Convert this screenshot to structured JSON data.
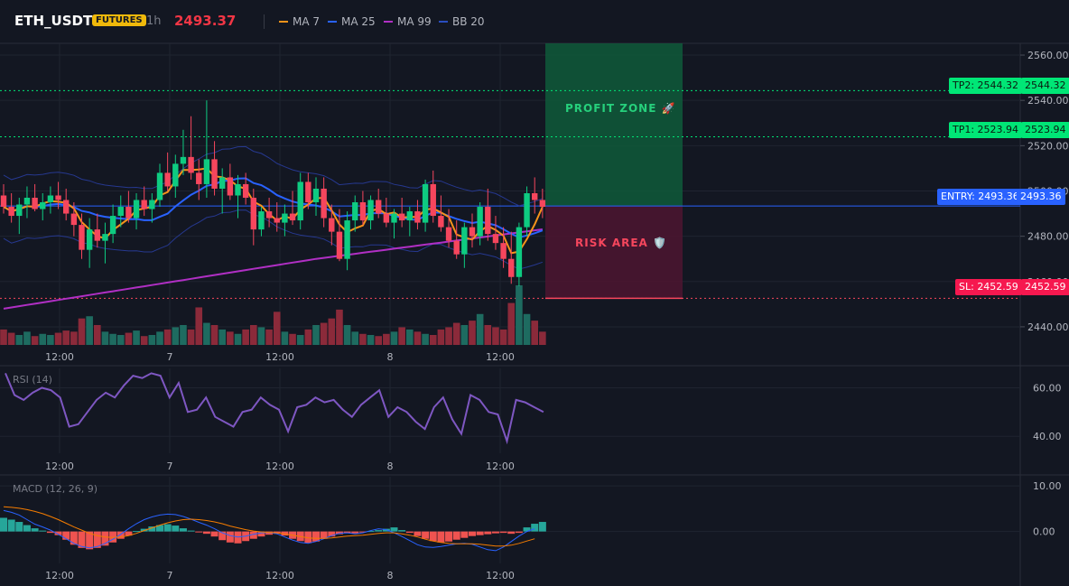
{
  "header": {
    "symbol": "ETH_USDT",
    "badge": "FUTURES",
    "timeframe": "1h",
    "price": "2493.37",
    "legend": [
      {
        "label": "MA 7",
        "color": "#f7931a"
      },
      {
        "label": "MA 25",
        "color": "#2962ff"
      },
      {
        "label": "MA 99",
        "color": "#b02fc4"
      },
      {
        "label": "BB 20",
        "color": "#2a3a8c"
      }
    ]
  },
  "trade": {
    "tp2_label": "TP2: 2544.32",
    "tp2_price": "2544.32",
    "tp1_label": "TP1: 2523.94",
    "tp1_price": "2523.94",
    "entry_label": "ENTRY: 2493.36",
    "entry_price": "2493.36",
    "sl_label": "SL: 2452.59",
    "sl_price": "2452.59",
    "profit_zone": "PROFIT ZONE 🚀",
    "risk_area": "RISK AREA 🛡️",
    "tp2": 2544.32,
    "tp1": 2523.94,
    "entry": 2493.36,
    "sl": 2452.59
  },
  "indicators": {
    "rsi_label": "RSI (14)",
    "macd_label": "MACD (12, 26, 9)"
  },
  "colors": {
    "up": "#26a69a",
    "down": "#ef5350",
    "candle_up": "#0ecb81",
    "candle_down": "#f6465d"
  },
  "chart_data": [
    {
      "type": "candlestick",
      "y_ticks": [
        "2560.00",
        "2540.00",
        "2520.00",
        "2500.00",
        "2480.00",
        "2460.00",
        "2440.00"
      ],
      "ylim": [
        2432,
        2562
      ],
      "x_tick_labels": [
        "12:00",
        "7",
        "12:00",
        "8",
        "12:00"
      ],
      "ohlc": [
        [
          2498,
          2503,
          2490,
          2493
        ],
        [
          2493,
          2499,
          2486,
          2489
        ],
        [
          2489,
          2497,
          2481,
          2494
        ],
        [
          2494,
          2502,
          2488,
          2497
        ],
        [
          2497,
          2503,
          2491,
          2492
        ],
        [
          2492,
          2499,
          2487,
          2495
        ],
        [
          2495,
          2502,
          2490,
          2498
        ],
        [
          2498,
          2504,
          2492,
          2496
        ],
        [
          2496,
          2501,
          2487,
          2490
        ],
        [
          2490,
          2495,
          2480,
          2485
        ],
        [
          2485,
          2490,
          2470,
          2474
        ],
        [
          2474,
          2488,
          2466,
          2483
        ],
        [
          2483,
          2490,
          2475,
          2478
        ],
        [
          2478,
          2486,
          2468,
          2481
        ],
        [
          2481,
          2494,
          2477,
          2489
        ],
        [
          2489,
          2498,
          2484,
          2493
        ],
        [
          2493,
          2500,
          2486,
          2488
        ],
        [
          2488,
          2499,
          2483,
          2496
        ],
        [
          2496,
          2502,
          2489,
          2492
        ],
        [
          2492,
          2499,
          2486,
          2496
        ],
        [
          2496,
          2512,
          2493,
          2508
        ],
        [
          2508,
          2517,
          2500,
          2502
        ],
        [
          2502,
          2516,
          2497,
          2512
        ],
        [
          2512,
          2527,
          2507,
          2515
        ],
        [
          2515,
          2533,
          2505,
          2508
        ],
        [
          2508,
          2514,
          2496,
          2503
        ],
        [
          2503,
          2540,
          2497,
          2514
        ],
        [
          2514,
          2522,
          2498,
          2501
        ],
        [
          2501,
          2510,
          2490,
          2506
        ],
        [
          2506,
          2512,
          2496,
          2498
        ],
        [
          2498,
          2507,
          2488,
          2503
        ],
        [
          2503,
          2508,
          2494,
          2497
        ],
        [
          2497,
          2501,
          2476,
          2483
        ],
        [
          2483,
          2493,
          2480,
          2491
        ],
        [
          2491,
          2497,
          2484,
          2488
        ],
        [
          2488,
          2495,
          2482,
          2486
        ],
        [
          2486,
          2494,
          2480,
          2490
        ],
        [
          2490,
          2500,
          2485,
          2487
        ],
        [
          2487,
          2508,
          2483,
          2504
        ],
        [
          2504,
          2508,
          2492,
          2495
        ],
        [
          2495,
          2506,
          2489,
          2501
        ],
        [
          2501,
          2506,
          2484,
          2488
        ],
        [
          2488,
          2494,
          2476,
          2482
        ],
        [
          2482,
          2492,
          2469,
          2470
        ],
        [
          2470,
          2491,
          2465,
          2487
        ],
        [
          2487,
          2498,
          2482,
          2495
        ],
        [
          2495,
          2500,
          2485,
          2487
        ],
        [
          2487,
          2498,
          2483,
          2496
        ],
        [
          2496,
          2501,
          2488,
          2490
        ],
        [
          2490,
          2497,
          2484,
          2486
        ],
        [
          2486,
          2492,
          2479,
          2490
        ],
        [
          2490,
          2497,
          2484,
          2487
        ],
        [
          2487,
          2493,
          2480,
          2491
        ],
        [
          2491,
          2496,
          2483,
          2486
        ],
        [
          2486,
          2505,
          2482,
          2503
        ],
        [
          2503,
          2509,
          2486,
          2489
        ],
        [
          2489,
          2498,
          2482,
          2484
        ],
        [
          2484,
          2492,
          2475,
          2478
        ],
        [
          2478,
          2487,
          2470,
          2472
        ],
        [
          2472,
          2486,
          2466,
          2484
        ],
        [
          2484,
          2490,
          2475,
          2480
        ],
        [
          2480,
          2495,
          2476,
          2493
        ],
        [
          2493,
          2501,
          2478,
          2481
        ],
        [
          2481,
          2489,
          2474,
          2477
        ],
        [
          2477,
          2484,
          2466,
          2470
        ],
        [
          2470,
          2482,
          2459,
          2462
        ],
        [
          2462,
          2486,
          2458,
          2484
        ],
        [
          2484,
          2502,
          2480,
          2499
        ],
        [
          2499,
          2506,
          2490,
          2496
        ],
        [
          2496,
          2501,
          2488,
          2493
        ]
      ],
      "volume": [
        14,
        11,
        9,
        12,
        8,
        10,
        9,
        11,
        13,
        12,
        24,
        26,
        18,
        12,
        10,
        9,
        11,
        13,
        8,
        9,
        12,
        14,
        16,
        18,
        14,
        34,
        20,
        18,
        14,
        12,
        10,
        14,
        18,
        16,
        14,
        30,
        12,
        10,
        9,
        14,
        18,
        20,
        24,
        32,
        18,
        12,
        10,
        9,
        8,
        10,
        12,
        16,
        14,
        12,
        10,
        9,
        14,
        16,
        20,
        18,
        22,
        28,
        18,
        16,
        14,
        38,
        54,
        28,
        22,
        12
      ]
    },
    {
      "type": "line",
      "name": "RSI (14)",
      "y_ticks": [
        "60.00",
        "40.00"
      ],
      "ylim": [
        33,
        68
      ],
      "values": [
        66,
        57,
        55,
        58,
        60,
        59,
        56,
        44,
        45,
        50,
        55,
        58,
        56,
        61,
        65,
        64,
        66,
        65,
        56,
        62,
        50,
        51,
        56,
        48,
        46,
        44,
        50,
        51,
        56,
        53,
        51,
        42,
        52,
        53,
        56,
        54,
        55,
        51,
        48,
        53,
        56,
        59,
        48,
        52,
        50,
        46,
        43,
        52,
        56,
        47,
        41,
        57,
        55,
        50,
        49,
        38,
        55,
        54,
        52,
        50
      ]
    },
    {
      "type": "bar",
      "name": "MACD (12, 26, 9)",
      "y_ticks": [
        "10.00",
        "0.00"
      ],
      "ylim": [
        -7,
        12
      ],
      "histogram": [
        3,
        2.6,
        2.1,
        1.4,
        0.7,
        0.2,
        -0.3,
        -0.8,
        -1.8,
        -2.9,
        -3.6,
        -3.9,
        -3.6,
        -3.1,
        -2.4,
        -1.6,
        -0.9,
        0.1,
        0.6,
        1.1,
        1.4,
        1.6,
        1.3,
        0.7,
        0.2,
        -0.2,
        -0.5,
        -1.1,
        -1.9,
        -2.4,
        -2.6,
        -2.1,
        -1.6,
        -1.1,
        -0.7,
        -0.5,
        -0.9,
        -1.6,
        -2.1,
        -2.5,
        -2.2,
        -1.6,
        -1.1,
        -0.6,
        -0.3,
        -0.4,
        -0.2,
        0.1,
        0.3,
        0.6,
        0.9,
        0.3,
        -0.3,
        -1.0,
        -1.6,
        -2.1,
        -2.4,
        -2.2,
        -1.8,
        -1.4,
        -1.0,
        -0.8,
        -0.6,
        -0.4,
        -0.3,
        -0.5,
        -0.3,
        0.9,
        1.7,
        2.1
      ],
      "macd": [
        4.6,
        4.2,
        3.6,
        2.6,
        1.6,
        1.0,
        0.3,
        -0.6,
        -1.6,
        -2.6,
        -3.3,
        -3.6,
        -3.3,
        -2.6,
        -1.7,
        -0.6,
        0.6,
        1.7,
        2.6,
        3.2,
        3.6,
        3.8,
        3.7,
        3.3,
        2.7,
        2.0,
        1.4,
        0.6,
        -0.3,
        -0.9,
        -1.2,
        -1.0,
        -0.6,
        -0.3,
        -0.2,
        -0.5,
        -1.2,
        -1.9,
        -2.4,
        -2.6,
        -2.2,
        -1.6,
        -0.9,
        -0.4,
        -0.3,
        -0.5,
        -0.3,
        0.2,
        0.6,
        0.4,
        -0.3,
        -1.1,
        -2.0,
        -2.9,
        -3.4,
        -3.5,
        -3.3,
        -3.0,
        -2.7,
        -2.6,
        -2.8,
        -3.4,
        -4.0,
        -4.2,
        -3.4,
        -2.2,
        -1.0,
        0.0,
        0.6
      ],
      "signal": [
        5.4,
        5.3,
        5.1,
        4.8,
        4.4,
        3.9,
        3.3,
        2.6,
        1.8,
        1.0,
        0.3,
        -0.4,
        -0.9,
        -1.2,
        -1.3,
        -1.2,
        -0.9,
        -0.4,
        0.2,
        0.8,
        1.4,
        1.9,
        2.3,
        2.6,
        2.7,
        2.6,
        2.4,
        2.1,
        1.7,
        1.2,
        0.8,
        0.4,
        0.1,
        -0.1,
        -0.2,
        -0.3,
        -0.5,
        -0.8,
        -1.1,
        -1.4,
        -1.5,
        -1.5,
        -1.4,
        -1.2,
        -1.0,
        -0.9,
        -0.8,
        -0.6,
        -0.4,
        -0.3,
        -0.3,
        -0.5,
        -0.8,
        -1.2,
        -1.7,
        -2.1,
        -2.4,
        -2.6,
        -2.7,
        -2.7,
        -2.7,
        -2.8,
        -3.0,
        -3.2,
        -3.2,
        -3.0,
        -2.6,
        -2.1,
        -1.6
      ]
    }
  ]
}
